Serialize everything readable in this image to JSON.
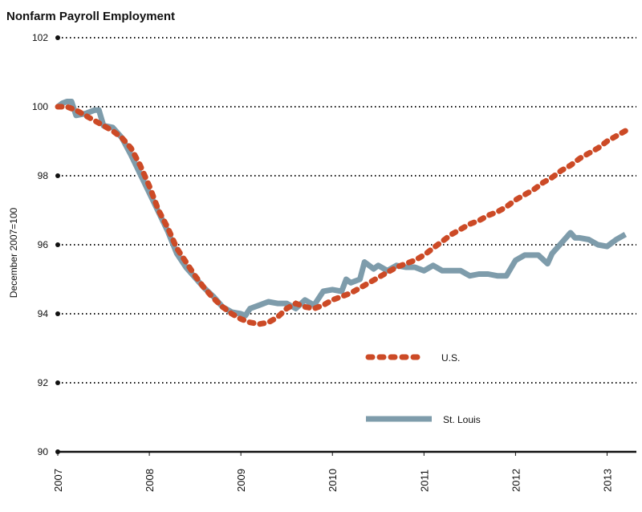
{
  "chart_data": {
    "type": "line",
    "title": "Nonfarm Payroll Employment",
    "xlabel": "",
    "ylabel": "December 2007=100",
    "xlim": [
      2007.0,
      2013.32
    ],
    "ylim": [
      90,
      102
    ],
    "y_ticks": [
      "90",
      "92",
      "94",
      "96",
      "98",
      "100",
      "102"
    ],
    "x_ticks": [
      "2007",
      "2008",
      "2009",
      "2010",
      "2011",
      "2012",
      "2013"
    ],
    "grid": "horizontal dotted",
    "legend_position": "inside-lower-center",
    "colors": {
      "us": "#cc4a26",
      "st_louis": "#7e9cab",
      "axis": "#111111"
    },
    "series": [
      {
        "name": "U.S.",
        "style": "dotted",
        "x": [
          2007.0,
          2007.1,
          2007.2,
          2007.3,
          2007.4,
          2007.5,
          2007.6,
          2007.7,
          2007.8,
          2007.9,
          2008.0,
          2008.1,
          2008.2,
          2008.3,
          2008.4,
          2008.5,
          2008.6,
          2008.7,
          2008.8,
          2008.9,
          2009.0,
          2009.1,
          2009.2,
          2009.3,
          2009.4,
          2009.5,
          2009.6,
          2009.7,
          2009.8,
          2009.9,
          2010.0,
          2010.1,
          2010.2,
          2010.3,
          2010.4,
          2010.5,
          2010.6,
          2010.7,
          2010.8,
          2010.9,
          2011.0,
          2011.1,
          2011.2,
          2011.3,
          2011.4,
          2011.5,
          2011.6,
          2011.7,
          2011.8,
          2011.9,
          2012.0,
          2012.1,
          2012.2,
          2012.3,
          2012.4,
          2012.5,
          2012.6,
          2012.7,
          2012.8,
          2012.9,
          2013.0,
          2013.1,
          2013.2
        ],
        "y": [
          100.0,
          100.0,
          99.9,
          99.75,
          99.6,
          99.45,
          99.3,
          99.1,
          98.8,
          98.3,
          97.7,
          97.0,
          96.5,
          95.9,
          95.5,
          95.1,
          94.75,
          94.45,
          94.2,
          94.0,
          93.85,
          93.75,
          93.7,
          93.75,
          93.9,
          94.15,
          94.3,
          94.2,
          94.15,
          94.25,
          94.4,
          94.5,
          94.6,
          94.75,
          94.9,
          95.05,
          95.2,
          95.35,
          95.45,
          95.55,
          95.7,
          95.9,
          96.1,
          96.3,
          96.45,
          96.6,
          96.7,
          96.85,
          96.95,
          97.1,
          97.3,
          97.45,
          97.6,
          97.8,
          97.95,
          98.15,
          98.3,
          98.5,
          98.65,
          98.8,
          99.0,
          99.15,
          99.3
        ]
      },
      {
        "name": "St. Louis",
        "style": "solid",
        "x": [
          2007.0,
          2007.05,
          2007.1,
          2007.15,
          2007.2,
          2007.3,
          2007.4,
          2007.45,
          2007.5,
          2007.6,
          2007.7,
          2007.8,
          2007.9,
          2008.0,
          2008.1,
          2008.2,
          2008.3,
          2008.4,
          2008.5,
          2008.6,
          2008.7,
          2008.8,
          2008.9,
          2009.0,
          2009.05,
          2009.1,
          2009.2,
          2009.3,
          2009.4,
          2009.5,
          2009.6,
          2009.7,
          2009.8,
          2009.9,
          2010.0,
          2010.1,
          2010.15,
          2010.2,
          2010.3,
          2010.35,
          2010.45,
          2010.5,
          2010.6,
          2010.7,
          2010.8,
          2010.9,
          2011.0,
          2011.1,
          2011.2,
          2011.3,
          2011.4,
          2011.5,
          2011.6,
          2011.7,
          2011.8,
          2011.9,
          2012.0,
          2012.1,
          2012.15,
          2012.25,
          2012.35,
          2012.4,
          2012.5,
          2012.6,
          2012.65,
          2012.7,
          2012.8,
          2012.9,
          2013.0,
          2013.1,
          2013.2
        ],
        "y": [
          100.0,
          100.1,
          100.15,
          100.15,
          99.75,
          99.8,
          99.9,
          99.9,
          99.45,
          99.4,
          99.1,
          98.6,
          98.05,
          97.5,
          96.95,
          96.4,
          95.75,
          95.35,
          95.05,
          94.75,
          94.5,
          94.2,
          94.05,
          94.0,
          93.95,
          94.15,
          94.25,
          94.35,
          94.3,
          94.3,
          94.15,
          94.4,
          94.25,
          94.65,
          94.7,
          94.65,
          95.0,
          94.9,
          95.0,
          95.5,
          95.3,
          95.4,
          95.25,
          95.4,
          95.35,
          95.35,
          95.25,
          95.4,
          95.25,
          95.25,
          95.25,
          95.1,
          95.15,
          95.15,
          95.1,
          95.1,
          95.55,
          95.7,
          95.7,
          95.7,
          95.45,
          95.75,
          96.05,
          96.35,
          96.2,
          96.2,
          96.15,
          96.0,
          95.95,
          96.15,
          96.3
        ]
      }
    ]
  }
}
